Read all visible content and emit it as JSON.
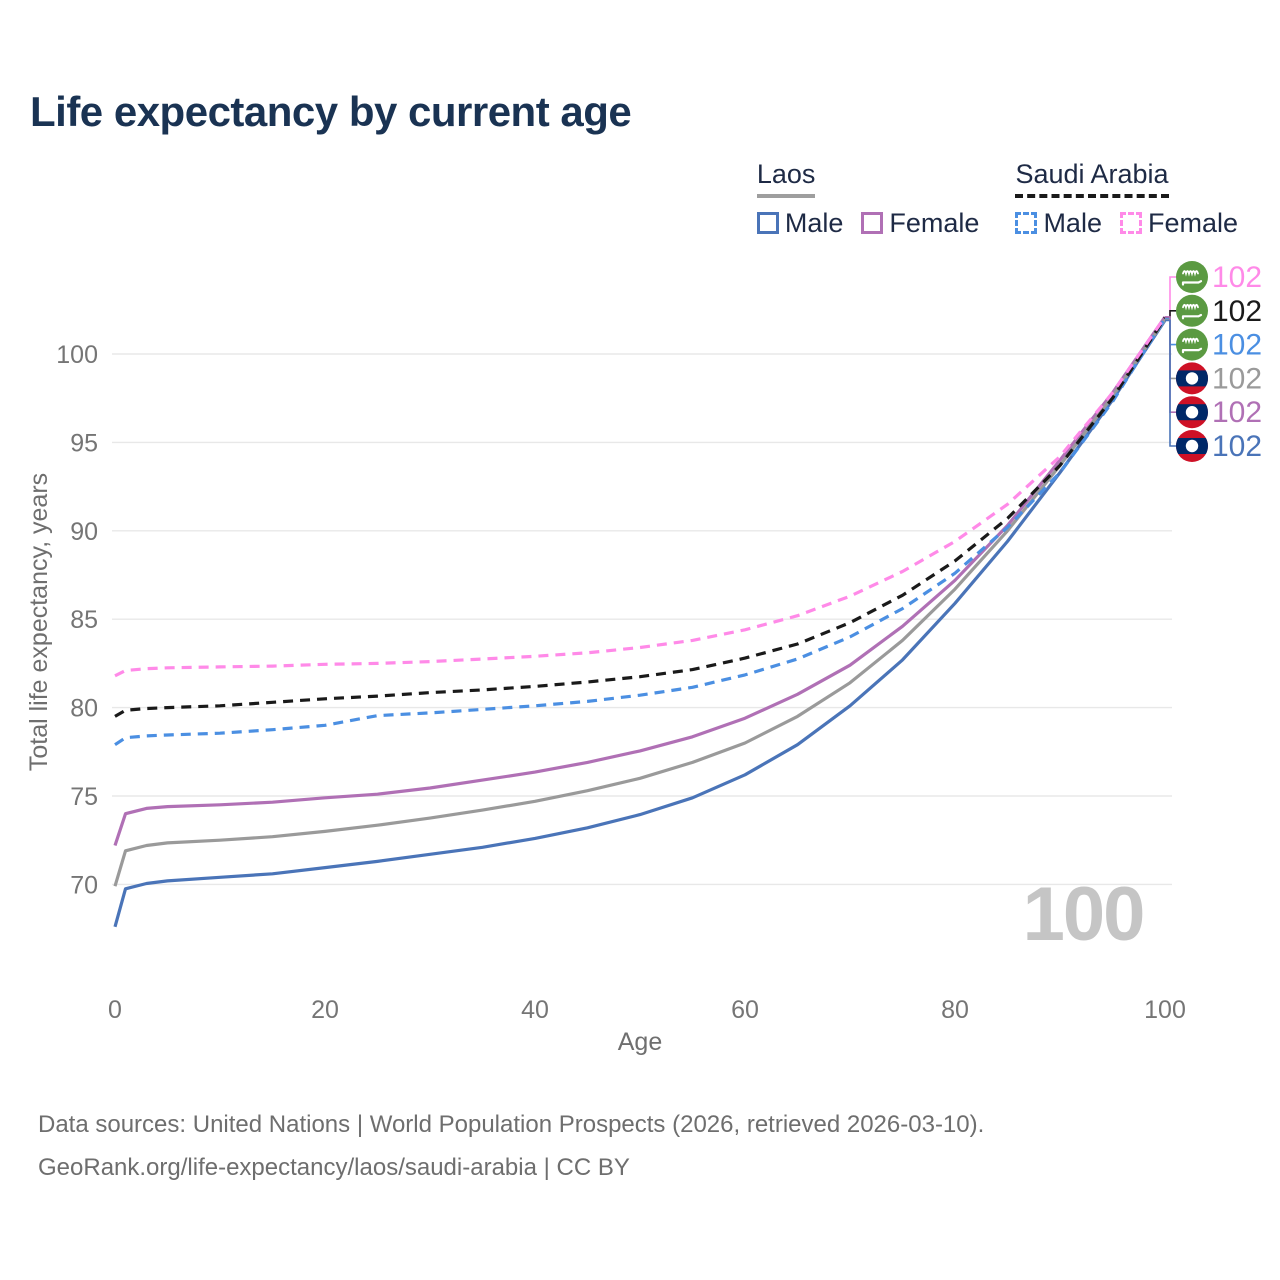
{
  "title": "Life expectancy by current age",
  "legend": {
    "groups": [
      {
        "label": "Laos",
        "underline_style": "solid",
        "underline_color": "#9e9e9e",
        "items": [
          {
            "label": "Male",
            "color": "#4a74b8",
            "dash": false
          },
          {
            "label": "Female",
            "color": "#b070b5",
            "dash": false
          }
        ]
      },
      {
        "label": "Saudi Arabia",
        "underline_style": "dashed",
        "underline_color": "#1a1a1a",
        "items": [
          {
            "label": "Male",
            "color": "#4b8fe2",
            "dash": true
          },
          {
            "label": "Female",
            "color": "#ff8ae8",
            "dash": true
          }
        ]
      }
    ]
  },
  "footer": {
    "line1": "Data sources: United Nations | World Population Prospects (2026, retrieved 2026-03-10).",
    "line2": "GeoRank.org/life-expectancy/laos/saudi-arabia | CC BY"
  },
  "chart_data": {
    "type": "line",
    "title": "Life expectancy by current age",
    "xlabel": "Age",
    "ylabel": "Total life expectancy, years",
    "x_ticks": [
      0,
      20,
      40,
      60,
      80,
      100
    ],
    "y_ticks": [
      70,
      75,
      80,
      85,
      90,
      95,
      100
    ],
    "xlim": [
      0,
      100
    ],
    "ylim": [
      67,
      103
    ],
    "grid": "horizontal-only",
    "gridline_color": "#e8e8e8",
    "watermark": "100",
    "legend_position": "top-right",
    "ages": [
      0,
      1,
      3,
      5,
      10,
      15,
      20,
      25,
      30,
      35,
      40,
      45,
      50,
      55,
      60,
      65,
      70,
      75,
      80,
      85,
      90,
      95,
      100
    ],
    "series": [
      {
        "name": "Saudi Arabia Female",
        "country": "Saudi Arabia",
        "sex": "Female",
        "color": "#ff8ae8",
        "dash": true,
        "flag": "saudi",
        "end_label": "102",
        "values": [
          81.8,
          82.1,
          82.2,
          82.25,
          82.3,
          82.35,
          82.45,
          82.5,
          82.6,
          82.75,
          82.9,
          83.1,
          83.4,
          83.8,
          84.4,
          85.2,
          86.3,
          87.7,
          89.4,
          91.5,
          94.2,
          97.8,
          102.1
        ]
      },
      {
        "name": "Saudi Arabia Both sexes",
        "country": "Saudi Arabia",
        "sex": "Both sexes",
        "color": "#1a1a1a",
        "dash": true,
        "flag": "saudi",
        "end_label": "102",
        "values": [
          79.5,
          79.85,
          79.95,
          80.0,
          80.1,
          80.3,
          80.5,
          80.65,
          80.85,
          81.0,
          81.2,
          81.45,
          81.75,
          82.15,
          82.8,
          83.6,
          84.8,
          86.35,
          88.3,
          90.7,
          93.7,
          97.5,
          102.05
        ]
      },
      {
        "name": "Saudi Arabia Male",
        "country": "Saudi Arabia",
        "sex": "Male",
        "color": "#4b8fe2",
        "dash": true,
        "flag": "saudi",
        "end_label": "102",
        "values": [
          77.9,
          78.3,
          78.4,
          78.45,
          78.55,
          78.75,
          79.0,
          79.55,
          79.7,
          79.9,
          80.1,
          80.35,
          80.7,
          81.15,
          81.85,
          82.75,
          84.0,
          85.6,
          87.6,
          90.2,
          93.3,
          97.3,
          102.0
        ]
      },
      {
        "name": "Laos Both sexes",
        "country": "Laos",
        "sex": "Both sexes",
        "color": "#9a9a9a",
        "dash": false,
        "flag": "laos",
        "end_label": "102",
        "values": [
          69.9,
          71.9,
          72.2,
          72.35,
          72.5,
          72.7,
          73.0,
          73.35,
          73.75,
          74.2,
          74.7,
          75.3,
          76.0,
          76.9,
          78.0,
          79.5,
          81.4,
          83.8,
          86.7,
          90.0,
          93.7,
          97.6,
          101.95
        ]
      },
      {
        "name": "Laos Female",
        "country": "Laos",
        "sex": "Female",
        "color": "#b070b5",
        "dash": false,
        "flag": "laos",
        "end_label": "102",
        "values": [
          72.2,
          74.0,
          74.3,
          74.4,
          74.5,
          74.65,
          74.9,
          75.1,
          75.45,
          75.9,
          76.35,
          76.9,
          77.55,
          78.35,
          79.4,
          80.75,
          82.4,
          84.6,
          87.2,
          90.3,
          94.0,
          97.8,
          102.1
        ]
      },
      {
        "name": "Laos Male",
        "country": "Laos",
        "sex": "Male",
        "color": "#4a74b8",
        "dash": false,
        "flag": "laos",
        "end_label": "102",
        "values": [
          67.6,
          69.75,
          70.05,
          70.2,
          70.4,
          70.6,
          70.95,
          71.3,
          71.7,
          72.1,
          72.6,
          73.2,
          73.95,
          74.9,
          76.2,
          77.9,
          80.1,
          82.7,
          85.9,
          89.4,
          93.3,
          97.4,
          101.9
        ]
      }
    ],
    "flag_colors": {
      "saudi_green": "#5b9a42",
      "laos_red": "#ce1126",
      "laos_blue": "#002868"
    }
  }
}
